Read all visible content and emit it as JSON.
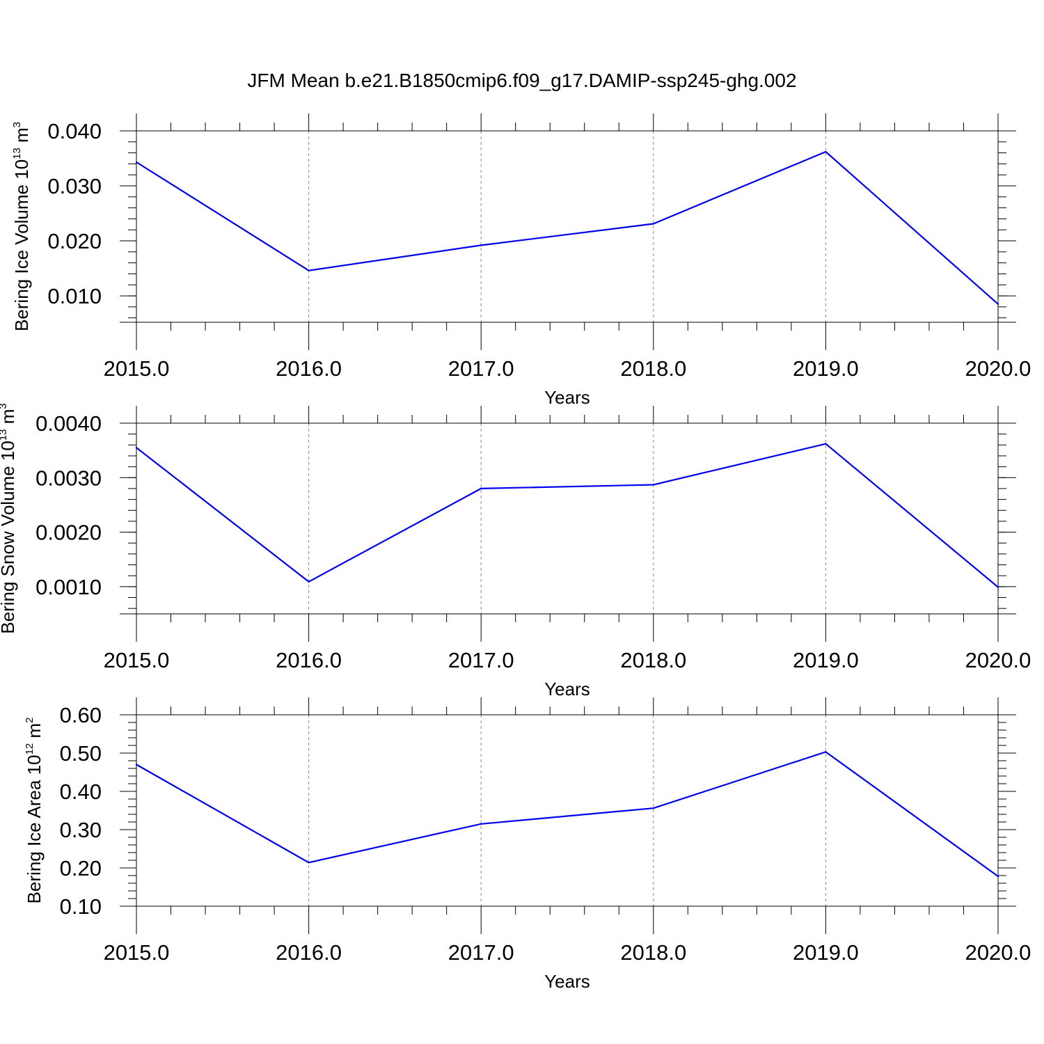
{
  "title": "JFM Mean b.e21.B1850cmip6.f09_g17.DAMIP-ssp245-ghg.002",
  "colors": {
    "series": "#0000ee",
    "axis": "#000000",
    "grid": "#888888"
  },
  "chart_data": [
    {
      "type": "line",
      "xlabel": "Years",
      "ylabel": {
        "base": "Bering Ice Volume 10",
        "exp": "13",
        "unit": " m",
        "unit_exp": "3"
      },
      "x": [
        2015,
        2016,
        2017,
        2018,
        2019,
        2020
      ],
      "xticks": [
        "2015.0",
        "2016.0",
        "2017.0",
        "2018.0",
        "2019.0",
        "2020.0"
      ],
      "ylim": [
        0.0052,
        0.04
      ],
      "yticks": [
        0.01,
        0.02,
        0.03,
        0.04
      ],
      "ytick_labels": [
        "0.010",
        "0.020",
        "0.030",
        "0.040"
      ],
      "yminor_step": 0.002,
      "values": [
        0.0343,
        0.0146,
        0.0192,
        0.0231,
        0.0362,
        0.0085
      ]
    },
    {
      "type": "line",
      "xlabel": "Years",
      "ylabel": {
        "base": "Bering Snow Volume 10",
        "exp": "13",
        "unit": " m",
        "unit_exp": "3"
      },
      "x": [
        2015,
        2016,
        2017,
        2018,
        2019,
        2020
      ],
      "xticks": [
        "2015.0",
        "2016.0",
        "2017.0",
        "2018.0",
        "2019.0",
        "2020.0"
      ],
      "ylim": [
        0.0005,
        0.004
      ],
      "yticks": [
        0.001,
        0.002,
        0.003,
        0.004
      ],
      "ytick_labels": [
        "0.0010",
        "0.0020",
        "0.0030",
        "0.0040"
      ],
      "yminor_step": 0.0002,
      "values": [
        0.00355,
        0.00109,
        0.0028,
        0.00287,
        0.00362,
        0.00099
      ]
    },
    {
      "type": "line",
      "xlabel": "Years",
      "ylabel": {
        "base": "Bering Ice Area 10",
        "exp": "12",
        "unit": " m",
        "unit_exp": "2"
      },
      "x": [
        2015,
        2016,
        2017,
        2018,
        2019,
        2020
      ],
      "xticks": [
        "2015.0",
        "2016.0",
        "2017.0",
        "2018.0",
        "2019.0",
        "2020.0"
      ],
      "ylim": [
        0.1,
        0.6
      ],
      "yticks": [
        0.1,
        0.2,
        0.3,
        0.4,
        0.5,
        0.6
      ],
      "ytick_labels": [
        "0.10",
        "0.20",
        "0.30",
        "0.40",
        "0.50",
        "0.60"
      ],
      "yminor_step": 0.02,
      "values": [
        0.47,
        0.214,
        0.315,
        0.356,
        0.503,
        0.178
      ]
    }
  ]
}
